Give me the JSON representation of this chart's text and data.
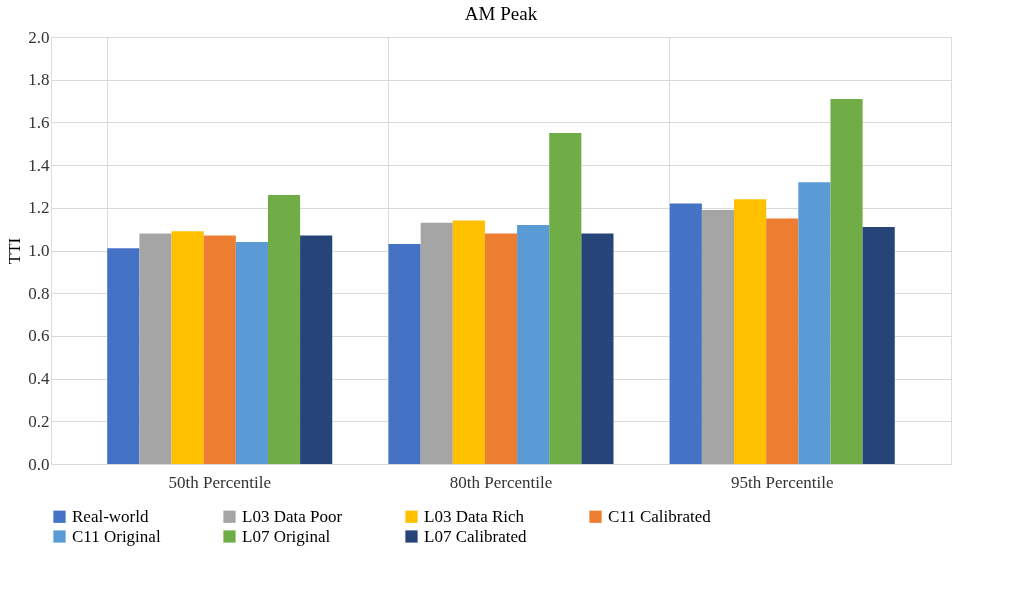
{
  "chart_data": {
    "type": "bar",
    "title": "AM Peak",
    "ylabel": "TTI",
    "categories": [
      "50th Percentile",
      "80th Percentile",
      "95th Percentile"
    ],
    "series": [
      {
        "name": "Real-world",
        "color": "#4472c4",
        "values": [
          1.01,
          1.03,
          1.22
        ]
      },
      {
        "name": "L03 Data Poor",
        "color": "#a5a5a5",
        "values": [
          1.08,
          1.13,
          1.19
        ]
      },
      {
        "name": "L03 Data Rich",
        "color": "#ffc000",
        "values": [
          1.09,
          1.14,
          1.24
        ]
      },
      {
        "name": "C11 Calibrated",
        "color": "#ed7d31",
        "values": [
          1.07,
          1.08,
          1.15
        ]
      },
      {
        "name": "C11 Original",
        "color": "#5b9bd5",
        "values": [
          1.04,
          1.12,
          1.32
        ]
      },
      {
        "name": "L07 Original",
        "color": "#70ad47",
        "values": [
          1.26,
          1.55,
          1.71
        ]
      },
      {
        "name": "L07 Calibrated",
        "color": "#264478",
        "values": [
          1.07,
          1.08,
          1.11
        ]
      }
    ],
    "ylim": [
      0,
      2.0
    ],
    "yticks": [
      {
        "value": 0,
        "label": "0.0"
      },
      {
        "value": 0.2,
        "label": "0.2"
      },
      {
        "value": 0.4,
        "label": "0.4"
      },
      {
        "value": 0.6,
        "label": "0.6"
      },
      {
        "value": 0.8,
        "label": "0.8"
      },
      {
        "value": 1.0,
        "label": "1.0"
      },
      {
        "value": 1.2,
        "label": "1.2"
      },
      {
        "value": 1.4,
        "label": "1.4"
      },
      {
        "value": 1.6,
        "label": "1.6"
      },
      {
        "value": 1.8,
        "label": "1.8"
      },
      {
        "value": 2.0,
        "label": "2.0"
      }
    ],
    "grid": true,
    "legend": "bottom"
  }
}
